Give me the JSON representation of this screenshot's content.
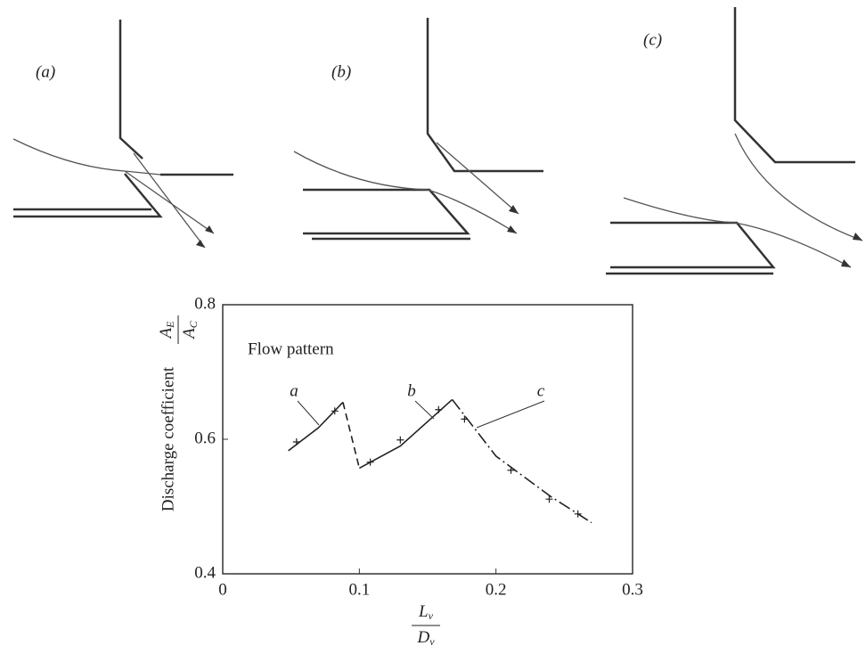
{
  "diagrams": {
    "labels": [
      "(a)",
      "(b)",
      "(c)"
    ]
  },
  "chart_data": {
    "type": "line",
    "ylabel": "Discharge coefficient",
    "yfraction": {
      "top": {
        "base": "A",
        "sub": "E"
      },
      "bottom": {
        "base": "A",
        "sub": "C"
      }
    },
    "xfraction": {
      "top": {
        "base": "L",
        "sub": "v"
      },
      "bottom": {
        "base": "D",
        "sub": "v"
      }
    },
    "annotation": "Flow pattern",
    "xlim": [
      0,
      0.3
    ],
    "xticks": [
      0,
      0.1,
      0.2,
      0.3
    ],
    "ylim": [
      0.4,
      0.8
    ],
    "yticks": [
      0.4,
      0.6,
      0.8
    ],
    "curves": [
      {
        "name": "a",
        "style": "solid",
        "x": [
          0.048,
          0.07,
          0.088
        ],
        "y": [
          0.583,
          0.617,
          0.655
        ]
      },
      {
        "style": "dashed",
        "x": [
          0.088,
          0.1
        ],
        "y": [
          0.655,
          0.557
        ]
      },
      {
        "name": "b",
        "style": "solid",
        "x": [
          0.1,
          0.13,
          0.168
        ],
        "y": [
          0.557,
          0.59,
          0.659
        ]
      },
      {
        "name": "c",
        "style": "dashdot",
        "x": [
          0.168,
          0.2,
          0.24,
          0.27
        ],
        "y": [
          0.659,
          0.575,
          0.515,
          0.476
        ]
      }
    ],
    "points": {
      "x": [
        0.054,
        0.082,
        0.108,
        0.13,
        0.158,
        0.177,
        0.211,
        0.239,
        0.26
      ],
      "y": [
        0.596,
        0.642,
        0.566,
        0.599,
        0.644,
        0.63,
        0.554,
        0.511,
        0.489
      ]
    }
  }
}
